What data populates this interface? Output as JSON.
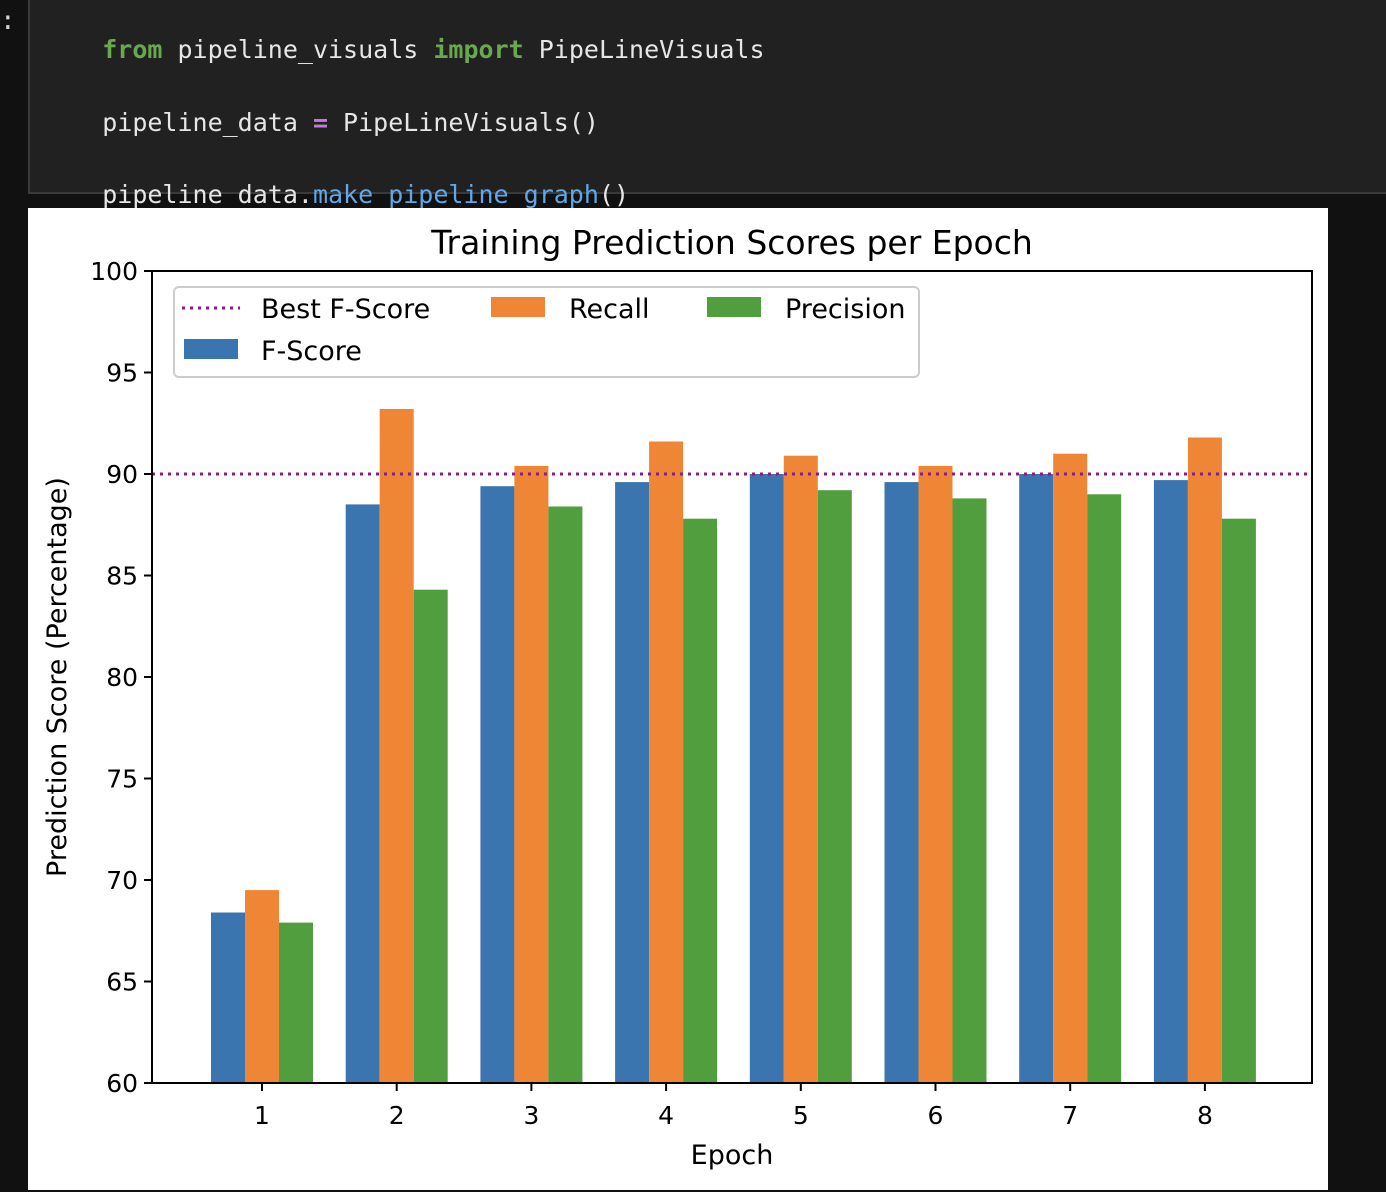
{
  "notebook": {
    "prompt": ":",
    "code": {
      "line1": {
        "kw_from": "from",
        "module": " pipeline_visuals ",
        "kw_import": "import",
        "name": " PipeLineVisuals"
      },
      "line2": {
        "var": "pipeline_data ",
        "op": "=",
        "call": " PipeLineVisuals()"
      },
      "line3": {
        "obj": "pipeline_data.",
        "method": "make_pipeline_graph",
        "args": "()"
      }
    }
  },
  "chart_data": {
    "type": "bar",
    "title": "Training Prediction Scores per Epoch",
    "xlabel": "Epoch",
    "ylabel": "Prediction Score (Percentage)",
    "ylim": [
      60,
      100
    ],
    "yticks": [
      60,
      65,
      70,
      75,
      80,
      85,
      90,
      95,
      100
    ],
    "categories": [
      "1",
      "2",
      "3",
      "4",
      "5",
      "6",
      "7",
      "8"
    ],
    "series": [
      {
        "name": "F-Score",
        "color": "#3b75af",
        "values": [
          68.4,
          88.5,
          89.4,
          89.6,
          90.0,
          89.6,
          90.0,
          89.7
        ]
      },
      {
        "name": "Recall",
        "color": "#ef8636",
        "values": [
          69.5,
          93.2,
          90.4,
          91.6,
          90.9,
          90.4,
          91.0,
          91.8
        ]
      },
      {
        "name": "Precision",
        "color": "#519e3e",
        "values": [
          67.9,
          84.3,
          88.4,
          87.8,
          89.2,
          88.8,
          89.0,
          87.8
        ]
      }
    ],
    "reference_line": {
      "name": "Best F-Score",
      "value": 90.0,
      "color": "#8b1a8b",
      "style": "dotted"
    },
    "legend": {
      "position": "upper-left",
      "entries": [
        "Best F-Score",
        "Recall",
        "Precision",
        "F-Score"
      ]
    },
    "grid": false
  }
}
